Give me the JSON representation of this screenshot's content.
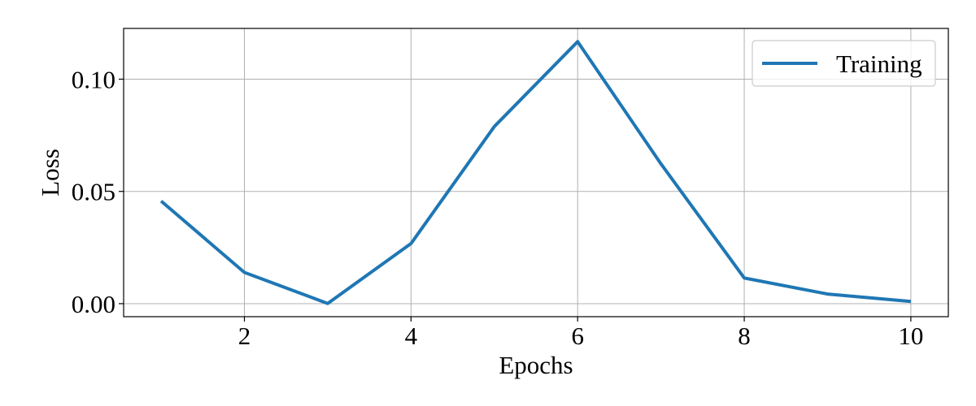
{
  "chart_data": {
    "type": "line",
    "title": "",
    "xlabel": "Epochs",
    "ylabel": "Loss",
    "xlim": [
      0.55,
      10.45
    ],
    "ylim": [
      -0.0058,
      0.1226
    ],
    "x_ticks": [
      2,
      4,
      6,
      8,
      10
    ],
    "x_tick_labels": [
      "2",
      "4",
      "6",
      "8",
      "10"
    ],
    "y_ticks": [
      0.0,
      0.05,
      0.1
    ],
    "y_tick_labels": [
      "0.00",
      "0.05",
      "0.10"
    ],
    "grid": true,
    "legend_position": "top-right",
    "series": [
      {
        "name": "Training",
        "color": "#1f77b4",
        "x": [
          1,
          2,
          3,
          4,
          5,
          6,
          7,
          8,
          9,
          10
        ],
        "y": [
          0.0457,
          0.0139,
          0.0001,
          0.0268,
          0.0789,
          0.1167,
          0.0623,
          0.0114,
          0.0043,
          0.001
        ]
      }
    ]
  }
}
